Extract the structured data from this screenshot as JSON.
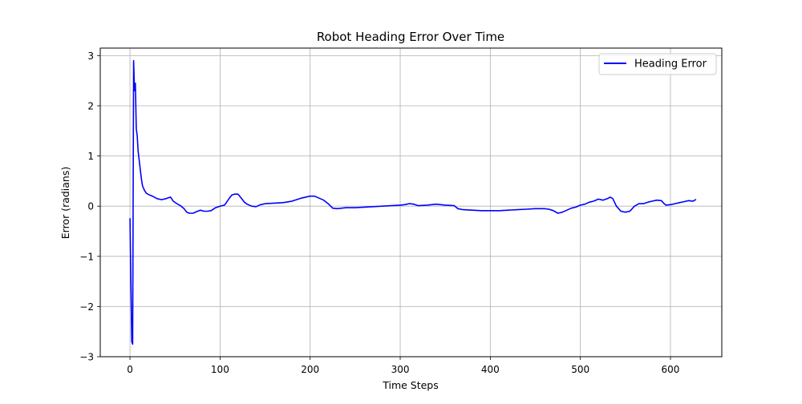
{
  "chart_data": {
    "type": "line",
    "title": "Robot Heading Error Over Time",
    "xlabel": "Time Steps",
    "ylabel": "Error (radians)",
    "xlim": [
      -33,
      657
    ],
    "ylim": [
      -3.0,
      3.15
    ],
    "xticks": [
      0,
      100,
      200,
      300,
      400,
      500,
      600
    ],
    "xtick_labels": [
      "0",
      "100",
      "200",
      "300",
      "400",
      "500",
      "600"
    ],
    "yticks": [
      -3,
      -2,
      -1,
      0,
      1,
      2,
      3
    ],
    "ytick_labels": [
      "−3",
      "−2",
      "−1",
      "0",
      "1",
      "2",
      "3"
    ],
    "grid": true,
    "legend_position": "top-right",
    "series": [
      {
        "name": "Heading Error",
        "color": "#0000ff",
        "x": [
          0,
          1,
          2,
          3,
          4,
          5,
          6,
          7,
          8,
          9,
          10,
          11,
          12,
          13,
          14,
          16,
          18,
          20,
          22,
          25,
          28,
          30,
          35,
          40,
          45,
          48,
          52,
          56,
          60,
          63,
          66,
          70,
          75,
          78,
          82,
          86,
          90,
          95,
          100,
          105,
          110,
          113,
          116,
          120,
          124,
          127,
          130,
          135,
          140,
          145,
          150,
          160,
          170,
          180,
          190,
          200,
          205,
          210,
          215,
          220,
          225,
          230,
          235,
          240,
          250,
          260,
          270,
          280,
          290,
          300,
          305,
          310,
          315,
          320,
          330,
          340,
          350,
          360,
          364,
          370,
          380,
          390,
          400,
          410,
          420,
          430,
          440,
          450,
          460,
          465,
          470,
          475,
          480,
          485,
          490,
          495,
          500,
          505,
          510,
          515,
          520,
          525,
          530,
          533,
          536,
          540,
          545,
          550,
          555,
          560,
          565,
          570,
          575,
          580,
          585,
          590,
          593,
          595,
          600,
          605,
          610,
          615,
          620,
          625,
          628
        ],
        "y": [
          -0.25,
          -1.5,
          -2.7,
          -2.75,
          2.9,
          2.3,
          2.45,
          1.55,
          1.4,
          1.1,
          0.95,
          0.8,
          0.65,
          0.5,
          0.4,
          0.32,
          0.26,
          0.24,
          0.22,
          0.2,
          0.17,
          0.15,
          0.13,
          0.15,
          0.18,
          0.1,
          0.05,
          0.01,
          -0.05,
          -0.12,
          -0.14,
          -0.14,
          -0.1,
          -0.08,
          -0.1,
          -0.1,
          -0.09,
          -0.03,
          0.0,
          0.02,
          0.15,
          0.22,
          0.24,
          0.24,
          0.15,
          0.08,
          0.04,
          0.0,
          -0.01,
          0.03,
          0.05,
          0.06,
          0.07,
          0.1,
          0.16,
          0.2,
          0.2,
          0.16,
          0.12,
          0.05,
          -0.04,
          -0.05,
          -0.04,
          -0.03,
          -0.03,
          -0.02,
          -0.01,
          0.0,
          0.01,
          0.02,
          0.03,
          0.05,
          0.04,
          0.01,
          0.02,
          0.04,
          0.02,
          0.01,
          -0.05,
          -0.07,
          -0.08,
          -0.09,
          -0.09,
          -0.09,
          -0.08,
          -0.07,
          -0.06,
          -0.05,
          -0.05,
          -0.06,
          -0.09,
          -0.14,
          -0.12,
          -0.08,
          -0.04,
          -0.02,
          0.02,
          0.04,
          0.08,
          0.1,
          0.14,
          0.12,
          0.15,
          0.18,
          0.15,
          0.0,
          -0.1,
          -0.12,
          -0.1,
          0.0,
          0.05,
          0.05,
          0.08,
          0.1,
          0.12,
          0.11,
          0.05,
          0.02,
          0.03,
          0.05,
          0.07,
          0.09,
          0.11,
          0.1,
          0.13
        ]
      }
    ]
  }
}
